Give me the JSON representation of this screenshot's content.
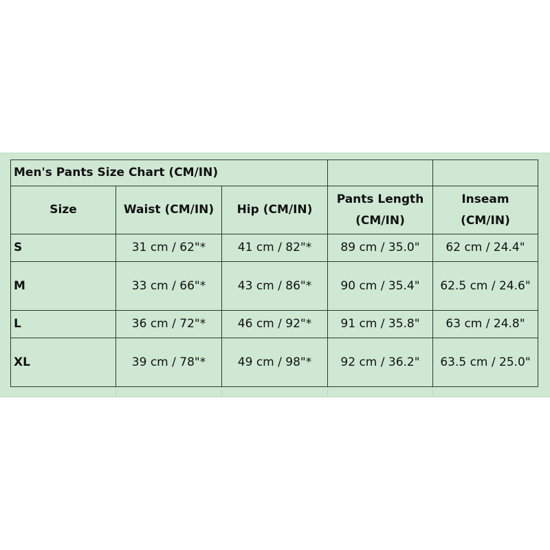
{
  "title": "Men's Pants Size Chart (CM/IN)",
  "headers": [
    "Size",
    "Waist (CM/IN)",
    "Hip (CM/IN)",
    "Pants Length (CM/IN)",
    "Inseam (CM/IN)"
  ],
  "rows": [
    {
      "size": "S",
      "waist": "31 cm / 62\"*",
      "hip": "41 cm / 82\"*",
      "length": "89 cm / 35.0\"",
      "inseam": "62 cm / 24.4\""
    },
    {
      "size": "M",
      "waist": "33 cm / 66\"*",
      "hip": "43 cm / 86\"*",
      "length": "90 cm / 35.4\"",
      "inseam": "62.5 cm / 24.6\""
    },
    {
      "size": "L",
      "waist": "36 cm / 72\"*",
      "hip": "46 cm / 92\"*",
      "length": "91 cm / 35.8\"",
      "inseam": "63 cm / 24.8\""
    },
    {
      "size": "XL",
      "waist": "39 cm / 78\"*",
      "hip": "49 cm / 98\"*",
      "length": "92 cm / 36.2\"",
      "inseam": "63.5 cm / 25.0\""
    }
  ],
  "colors": {
    "background": "#cfe8d3",
    "border": "#2a3a2c"
  }
}
